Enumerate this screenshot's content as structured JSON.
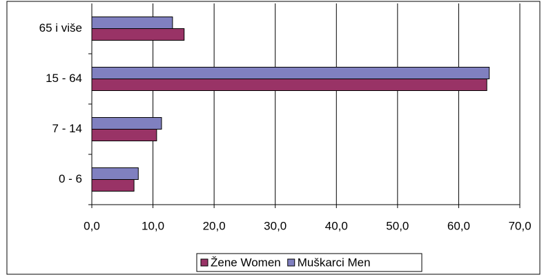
{
  "chart_data": {
    "type": "bar",
    "orientation": "horizontal",
    "categories": [
      "0 - 6",
      "7 - 14",
      "15 - 64",
      "65 i više"
    ],
    "series": [
      {
        "name": "Žene Women",
        "color": "#993366",
        "values": [
          6.9,
          10.6,
          64.6,
          15.1
        ]
      },
      {
        "name": "Muškarci Men",
        "color": "#8080c0",
        "values": [
          7.6,
          11.4,
          65.0,
          13.2
        ]
      }
    ],
    "xlim": [
      0,
      70
    ],
    "xticks": [
      {
        "value": 0,
        "label": "0,0"
      },
      {
        "value": 10,
        "label": "10,0"
      },
      {
        "value": 20,
        "label": "20,0"
      },
      {
        "value": 30,
        "label": "30,0"
      },
      {
        "value": 40,
        "label": "40,0"
      },
      {
        "value": 50,
        "label": "50,0"
      },
      {
        "value": 60,
        "label": "60,0"
      },
      {
        "value": 70,
        "label": "70,0"
      }
    ],
    "grid": true,
    "legend": "bottom"
  }
}
